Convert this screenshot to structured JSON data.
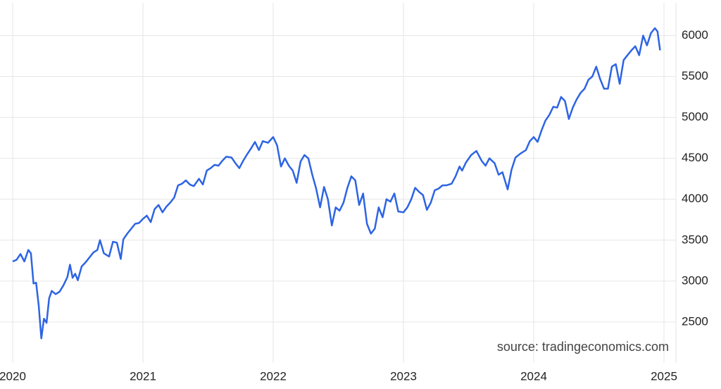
{
  "chart_data": {
    "type": "line",
    "source": "source: tradingeconomics.com",
    "color": "#2d64e3",
    "x": [
      2020.0,
      2020.03,
      2020.06,
      2020.09,
      2020.12,
      2020.14,
      2020.16,
      2020.18,
      2020.2,
      2020.22,
      2020.24,
      2020.26,
      2020.28,
      2020.3,
      2020.33,
      2020.36,
      2020.39,
      2020.42,
      2020.44,
      2020.46,
      2020.48,
      2020.5,
      2020.53,
      2020.56,
      2020.58,
      2020.62,
      2020.65,
      2020.67,
      2020.7,
      2020.74,
      2020.77,
      2020.8,
      2020.83,
      2020.85,
      2020.88,
      2020.91,
      2020.94,
      2020.97,
      2021.0,
      2021.03,
      2021.06,
      2021.09,
      2021.12,
      2021.15,
      2021.18,
      2021.21,
      2021.24,
      2021.27,
      2021.3,
      2021.33,
      2021.36,
      2021.39,
      2021.43,
      2021.46,
      2021.49,
      2021.52,
      2021.55,
      2021.58,
      2021.61,
      2021.64,
      2021.68,
      2021.71,
      2021.74,
      2021.77,
      2021.8,
      2021.83,
      2021.86,
      2021.89,
      2021.92,
      2021.96,
      2022.0,
      2022.03,
      2022.06,
      2022.09,
      2022.12,
      2022.15,
      2022.18,
      2022.21,
      2022.24,
      2022.27,
      2022.3,
      2022.33,
      2022.36,
      2022.39,
      2022.42,
      2022.45,
      2022.48,
      2022.51,
      2022.54,
      2022.57,
      2022.6,
      2022.63,
      2022.66,
      2022.69,
      2022.72,
      2022.75,
      2022.78,
      2022.81,
      2022.84,
      2022.87,
      2022.9,
      2022.93,
      2022.96,
      2023.0,
      2023.03,
      2023.06,
      2023.09,
      2023.12,
      2023.15,
      2023.18,
      2023.21,
      2023.24,
      2023.27,
      2023.3,
      2023.33,
      2023.37,
      2023.4,
      2023.43,
      2023.45,
      2023.48,
      2023.52,
      2023.56,
      2023.6,
      2023.63,
      2023.66,
      2023.7,
      2023.73,
      2023.76,
      2023.8,
      2023.83,
      2023.86,
      2023.9,
      2023.94,
      2023.97,
      2024.0,
      2024.03,
      2024.06,
      2024.09,
      2024.12,
      2024.15,
      2024.18,
      2024.21,
      2024.24,
      2024.27,
      2024.3,
      2024.33,
      2024.36,
      2024.39,
      2024.42,
      2024.45,
      2024.48,
      2024.51,
      2024.54,
      2024.57,
      2024.6,
      2024.63,
      2024.66,
      2024.69,
      2024.72,
      2024.75,
      2024.78,
      2024.81,
      2024.84,
      2024.87,
      2024.9,
      2024.93,
      2024.95,
      2024.97
    ],
    "values": [
      3240,
      3260,
      3330,
      3240,
      3380,
      3340,
      2970,
      2980,
      2700,
      2300,
      2540,
      2490,
      2790,
      2880,
      2840,
      2870,
      2950,
      3050,
      3200,
      3040,
      3090,
      3010,
      3180,
      3230,
      3270,
      3350,
      3380,
      3500,
      3340,
      3300,
      3480,
      3470,
      3270,
      3510,
      3580,
      3640,
      3700,
      3710,
      3760,
      3800,
      3720,
      3880,
      3930,
      3840,
      3910,
      3960,
      4020,
      4170,
      4190,
      4230,
      4180,
      4160,
      4250,
      4180,
      4350,
      4380,
      4420,
      4410,
      4470,
      4520,
      4510,
      4440,
      4380,
      4470,
      4550,
      4620,
      4700,
      4600,
      4710,
      4690,
      4760,
      4660,
      4400,
      4500,
      4410,
      4350,
      4200,
      4460,
      4540,
      4500,
      4300,
      4130,
      3900,
      4150,
      4000,
      3680,
      3900,
      3860,
      3960,
      4140,
      4280,
      4230,
      3930,
      4070,
      3700,
      3580,
      3640,
      3900,
      3780,
      4000,
      3970,
      4070,
      3850,
      3840,
      3900,
      4000,
      4140,
      4090,
      4050,
      3870,
      3960,
      4110,
      4130,
      4170,
      4170,
      4190,
      4280,
      4400,
      4350,
      4450,
      4540,
      4590,
      4470,
      4410,
      4500,
      4440,
      4300,
      4330,
      4120,
      4360,
      4510,
      4560,
      4600,
      4710,
      4760,
      4700,
      4840,
      4960,
      5030,
      5130,
      5120,
      5250,
      5200,
      4980,
      5120,
      5220,
      5300,
      5350,
      5460,
      5500,
      5620,
      5470,
      5350,
      5350,
      5620,
      5650,
      5410,
      5700,
      5760,
      5820,
      5870,
      5760,
      6000,
      5880,
      6030,
      6090,
      6050,
      5820
    ],
    "xlim": [
      2020,
      2025
    ],
    "xticks": [
      2020,
      2021,
      2022,
      2023,
      2024,
      2025
    ],
    "ylim": [
      2000,
      6400
    ],
    "yticks": [
      2500,
      3000,
      3500,
      4000,
      4500,
      5000,
      5500,
      6000
    ],
    "grid": true
  }
}
